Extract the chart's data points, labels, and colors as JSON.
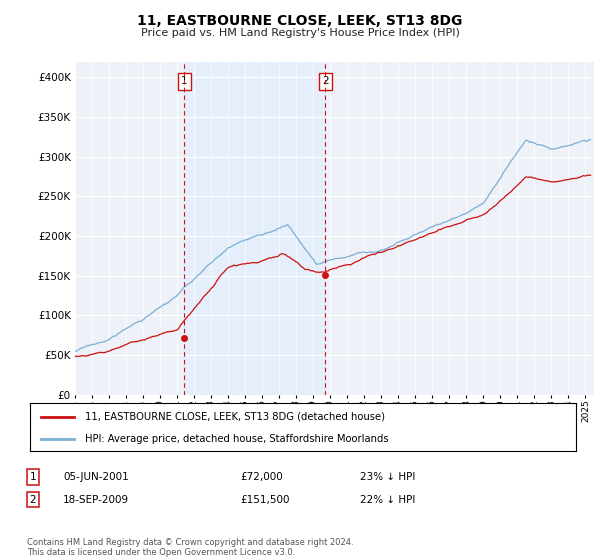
{
  "title": "11, EASTBOURNE CLOSE, LEEK, ST13 8DG",
  "subtitle": "Price paid vs. HM Land Registry's House Price Index (HPI)",
  "hpi_color": "#7bafd4",
  "price_color": "#cc1111",
  "vline_color": "#cc1111",
  "shade_color": "#ddeeff",
  "plot_bg_color": "#eef2f8",
  "legend_label_price": "11, EASTBOURNE CLOSE, LEEK, ST13 8DG (detached house)",
  "legend_label_hpi": "HPI: Average price, detached house, Staffordshire Moorlands",
  "annotation1_date": "05-JUN-2001",
  "annotation1_price": "£72,000",
  "annotation1_hpi": "23% ↓ HPI",
  "annotation2_date": "18-SEP-2009",
  "annotation2_price": "£151,500",
  "annotation2_hpi": "22% ↓ HPI",
  "footer": "Contains HM Land Registry data © Crown copyright and database right 2024.\nThis data is licensed under the Open Government Licence v3.0.",
  "sale1_year": 2001.42,
  "sale1_value": 72000,
  "sale2_year": 2009.71,
  "sale2_value": 151500,
  "xlim_start": 1995.0,
  "xlim_end": 2025.5,
  "ylim": [
    0,
    420000
  ],
  "yticks": [
    0,
    50000,
    100000,
    150000,
    200000,
    250000,
    300000,
    350000,
    400000
  ]
}
